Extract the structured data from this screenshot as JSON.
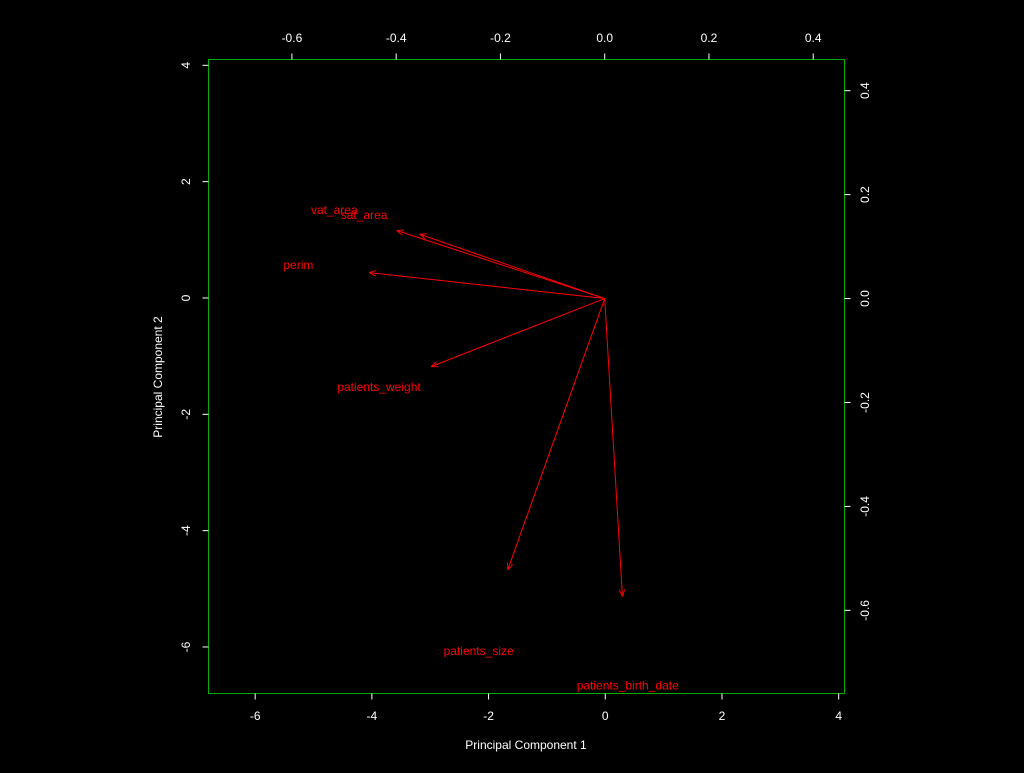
{
  "chart_data": {
    "type": "scatter",
    "subtype": "biplot",
    "xlabel": "Principal Component 1",
    "ylabel": "Principal Component 2",
    "xlim": [
      -6.8,
      4.1
    ],
    "ylim": [
      -6.8,
      4.1
    ],
    "x_ticks": [
      "-6",
      "-4",
      "-2",
      "0",
      "2",
      "4"
    ],
    "y_ticks": [
      "-6",
      "-4",
      "-2",
      "0",
      "2",
      "4"
    ],
    "top_xlim": [
      -0.76,
      0.46
    ],
    "right_ylim": [
      -0.76,
      0.46
    ],
    "top_ticks": [
      "-0.6",
      "-0.4",
      "-0.2",
      "0.0",
      "0.2",
      "0.4"
    ],
    "right_ticks": [
      "-0.6",
      "-0.4",
      "-0.2",
      "0.0",
      "0.2",
      "0.4"
    ],
    "grid": false,
    "colors": {
      "box": "#00b000",
      "arrows": "#ff0000",
      "text": "#ffffff",
      "background": "#000000"
    },
    "loadings": [
      {
        "label": "vat_area",
        "x": -0.399,
        "y": 0.131
      },
      {
        "label": "sat_area",
        "x": -0.355,
        "y": 0.124
      },
      {
        "label": "perim",
        "x": -0.452,
        "y": 0.05
      },
      {
        "label": "patients_weight",
        "x": -0.333,
        "y": -0.131
      },
      {
        "label": "patients_size",
        "x": -0.186,
        "y": -0.522
      },
      {
        "label": "patients_birth_date",
        "x": 0.034,
        "y": -0.573
      }
    ]
  }
}
